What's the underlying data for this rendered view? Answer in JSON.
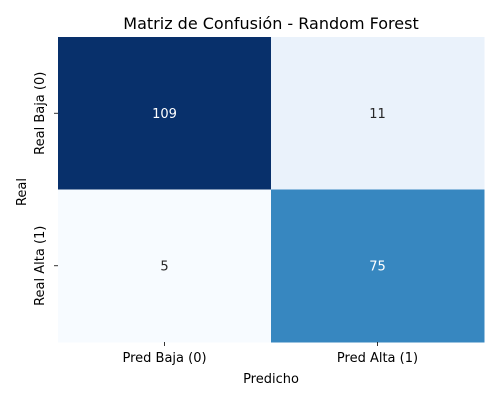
{
  "chart_data": {
    "type": "heatmap",
    "title": "Matriz de Confusión - Random Forest",
    "xlabel": "Predicho",
    "ylabel": "Real",
    "x_categories": [
      "Pred Baja (0)",
      "Pred Alta (1)"
    ],
    "y_categories": [
      "Real Baja (0)",
      "Real Alta (1)"
    ],
    "values": [
      [
        109,
        11
      ],
      [
        5,
        75
      ]
    ],
    "colormap": "Blues",
    "colorbar": false,
    "cell_colors": [
      [
        "#08306b",
        "#eaf2fb"
      ],
      [
        "#f7fbff",
        "#3787c0"
      ]
    ],
    "annotation_colors": [
      [
        "#ffffff",
        "#262626"
      ],
      [
        "#262626",
        "#ffffff"
      ]
    ]
  }
}
